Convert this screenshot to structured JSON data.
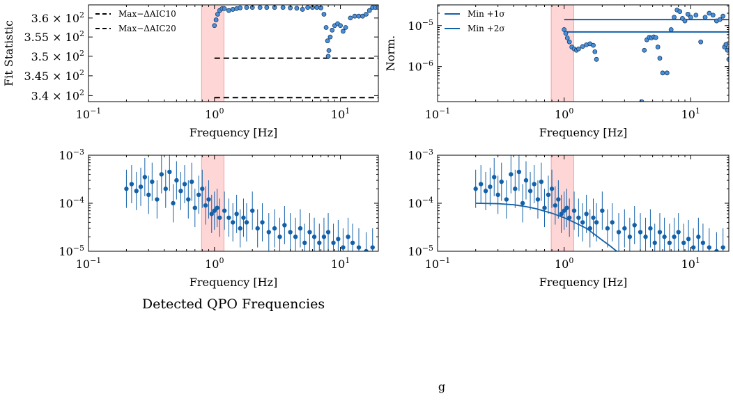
{
  "figure": {
    "section_title": "Detected QPO Frequencies",
    "stray_label": "g",
    "colors": {
      "series": "#1260a8",
      "marker_fill": "#4a90d9",
      "marker_edge": "#163a66",
      "band_fill": "#ffc8c8",
      "band_edge": "#f0a0a0",
      "threshold": "#000000"
    }
  },
  "chart_data": [
    {
      "id": "fit-statistic",
      "type": "scatter",
      "xlabel": "Frequency [Hz]",
      "ylabel": "Fit Statistic",
      "xscale": "log",
      "yscale": "log",
      "xlim": [
        0.1,
        20
      ],
      "ylim": [
        338.5,
        363.5
      ],
      "xtick_labels": [
        {
          "base": "10",
          "exp": "−1"
        },
        {
          "base": "10",
          "exp": "0"
        },
        {
          "base": "10",
          "exp": "1"
        }
      ],
      "ytick_labels": [
        {
          "value": 340,
          "mant": "3.4 × 10",
          "exp": "2"
        },
        {
          "value": 345,
          "mant": "3.45 × 10",
          "exp": "2"
        },
        {
          "value": 350,
          "mant": "3.5 × 10",
          "exp": "2"
        },
        {
          "value": 355,
          "mant": "3.55 × 10",
          "exp": "2"
        },
        {
          "value": 360,
          "mant": "3.6 × 10",
          "exp": "2"
        }
      ],
      "highlight_band": [
        0.79,
        1.19
      ],
      "legend_position": "top-left",
      "legend": [
        "Max−ΔAIC10",
        "Max−ΔAIC20"
      ],
      "thresholds": [
        {
          "name": "Max−ΔAIC10",
          "value": 349.5,
          "x_range": [
            1.0,
            20
          ],
          "style": "dashed"
        },
        {
          "name": "Max−ΔAIC20",
          "value": 339.5,
          "x_range": [
            1.0,
            20
          ],
          "style": "dashed"
        }
      ],
      "series": [
        {
          "name": "",
          "x": [
            1.0,
            1.03,
            1.06,
            1.1,
            1.15,
            1.2,
            1.3,
            1.4,
            1.5,
            1.6,
            1.8,
            2.0,
            2.3,
            2.6,
            3.0,
            3.5,
            4.0,
            4.5,
            5.0,
            5.5,
            6.0,
            6.5,
            7.0,
            7.4,
            7.7,
            7.9,
            8.0,
            8.1,
            8.3,
            8.6,
            9.0,
            9.5,
            10.0,
            10.5,
            11.0,
            12.0,
            13.0,
            14.0,
            15.0,
            16.0,
            17.0,
            18.0,
            19.0,
            20.0
          ],
          "y": [
            358.0,
            359.5,
            361.0,
            362.0,
            362.5,
            362.5,
            362.0,
            362.3,
            362.5,
            362.7,
            362.8,
            362.8,
            362.8,
            362.8,
            362.8,
            362.8,
            362.7,
            362.6,
            362.3,
            362.8,
            362.8,
            362.8,
            362.7,
            361.0,
            357.5,
            354.0,
            350.0,
            351.5,
            355.0,
            356.8,
            358.0,
            358.5,
            358.0,
            356.5,
            357.5,
            360.0,
            360.5,
            360.5,
            360.5,
            361.0,
            362.0,
            362.8,
            362.8,
            362.8
          ]
        }
      ]
    },
    {
      "id": "normalized",
      "type": "scatter",
      "xlabel": "Frequency [Hz]",
      "ylabel": "Norm.",
      "xscale": "log",
      "yscale": "log",
      "xlim": [
        0.1,
        20
      ],
      "ylim": [
        1.4e-07,
        3.2e-05
      ],
      "xtick_labels": [
        {
          "base": "10",
          "exp": "−1"
        },
        {
          "base": "10",
          "exp": "0"
        },
        {
          "base": "10",
          "exp": "1"
        }
      ],
      "ytick_labels": [
        {
          "value": 1e-06,
          "base": "10",
          "exp": "−6"
        },
        {
          "value": 1e-05,
          "base": "10",
          "exp": "−5"
        }
      ],
      "highlight_band": [
        0.79,
        1.19
      ],
      "legend_position": "top-left",
      "legend": [
        "Min +1σ",
        "Min +2σ"
      ],
      "thresholds": [
        {
          "name": "Min +1σ",
          "value": 1.4e-05,
          "x_range": [
            1.0,
            20
          ],
          "style": "solid"
        },
        {
          "name": "Min +2σ",
          "value": 7e-06,
          "x_range": [
            1.0,
            20
          ],
          "style": "solid"
        }
      ],
      "series": [
        {
          "name": "",
          "x": [
            1.0,
            1.03,
            1.06,
            1.1,
            1.15,
            1.2,
            1.25,
            1.3,
            1.4,
            1.5,
            1.6,
            1.7,
            1.75,
            1.8,
            4.1,
            4.3,
            4.5,
            4.7,
            4.9,
            5.1,
            5.3,
            5.5,
            5.7,
            6.0,
            6.5,
            7.0,
            7.4,
            7.8,
            8.2,
            8.6,
            9.0,
            9.5,
            10.0,
            11.0,
            12.0,
            13.0,
            14.0,
            15.0,
            16.0,
            17.0,
            18.0,
            18.5,
            19.0,
            19.5,
            20.0
          ],
          "y": [
            8e-06,
            6.5e-06,
            5e-06,
            4e-06,
            3e-06,
            2.7e-06,
            2.5e-06,
            2.7e-06,
            3.1e-06,
            3.4e-06,
            3.6e-06,
            3.3e-06,
            2.3e-06,
            1.5e-06,
            1.4e-07,
            2.5e-06,
            4.5e-06,
            5.2e-06,
            5e-06,
            5.3e-06,
            5.1e-06,
            3e-06,
            1.6e-06,
            7e-07,
            7e-07,
            8e-06,
            1.6e-05,
            2.4e-05,
            2.2e-05,
            1.5e-05,
            1.3e-05,
            1.9e-05,
            1.6e-05,
            1.8e-05,
            4e-06,
            1.6e-05,
            2e-05,
            1.8e-05,
            1.3e-05,
            1.4e-05,
            1.7e-05,
            3e-06,
            3.5e-06,
            2.5e-06,
            1.5e-06
          ]
        }
      ]
    },
    {
      "id": "power-spectrum",
      "type": "scatter",
      "xlabel": "Frequency [Hz]",
      "ylabel": "",
      "xscale": "log",
      "yscale": "log",
      "xlim": [
        0.1,
        20
      ],
      "ylim": [
        1e-05,
        0.001
      ],
      "xtick_labels": [
        {
          "base": "10",
          "exp": "−1"
        },
        {
          "base": "10",
          "exp": "0"
        },
        {
          "base": "10",
          "exp": "1"
        }
      ],
      "ytick_labels": [
        {
          "value": 1e-05,
          "base": "10",
          "exp": "−5"
        },
        {
          "value": 0.0001,
          "base": "10",
          "exp": "−4"
        },
        {
          "value": 0.001,
          "base": "10",
          "exp": "−3"
        }
      ],
      "highlight_band": [
        0.79,
        1.19
      ],
      "error_bars": true,
      "series": [
        {
          "name": "",
          "x": [
            0.2,
            0.22,
            0.24,
            0.26,
            0.28,
            0.3,
            0.32,
            0.35,
            0.38,
            0.41,
            0.44,
            0.47,
            0.5,
            0.54,
            0.58,
            0.62,
            0.66,
            0.7,
            0.75,
            0.8,
            0.85,
            0.9,
            0.95,
            1.0,
            1.05,
            1.1,
            1.2,
            1.3,
            1.4,
            1.5,
            1.6,
            1.7,
            1.8,
            2.0,
            2.2,
            2.4,
            2.7,
            3.0,
            3.3,
            3.6,
            4.0,
            4.4,
            4.8,
            5.2,
            5.7,
            6.2,
            6.8,
            7.4,
            8.0,
            8.8,
            9.6,
            10.5,
            11.5,
            12.5,
            14.0,
            16.0,
            18.0
          ],
          "y": [
            0.0002,
            0.00025,
            0.00018,
            0.00022,
            0.00035,
            0.00015,
            0.00028,
            0.00012,
            0.0004,
            0.0002,
            0.00045,
            0.0001,
            0.0003,
            0.00018,
            0.00025,
            0.00012,
            0.00028,
            8e-05,
            0.00015,
            0.0002,
            9e-05,
            0.00012,
            6e-05,
            7e-05,
            8e-05,
            5e-05,
            7e-05,
            5e-05,
            4e-05,
            6e-05,
            3e-05,
            5e-05,
            4e-05,
            7e-05,
            3e-05,
            4e-05,
            2.5e-05,
            3e-05,
            2e-05,
            3.5e-05,
            2.5e-05,
            2e-05,
            3e-05,
            1.5e-05,
            2.5e-05,
            2e-05,
            1.5e-05,
            2e-05,
            2.5e-05,
            1.5e-05,
            1.8e-05,
            1.2e-05,
            2e-05,
            1.5e-05,
            1.2e-05,
            1e-05,
            1.2e-05
          ],
          "y_err_factor": [
            2.5,
            2.5,
            2.5,
            2.5,
            2.5,
            2.5,
            2.5,
            2.5,
            2.5,
            2.5,
            2.5,
            2.5,
            2.5,
            2.5,
            2.5,
            2.5,
            2.5,
            2.5,
            2.5,
            2.5,
            2.5,
            2.5,
            2.5,
            2.5,
            2.5,
            2.5,
            2.5,
            2.5,
            2.5,
            2.5,
            2.5,
            2.5,
            2.5,
            2.5,
            2.5,
            2.5,
            2.5,
            2.5,
            2.5,
            2.5,
            2.5,
            2.5,
            2.5,
            2.5,
            2.5,
            2.5,
            2.5,
            2.5,
            2.5,
            2.5,
            2.5,
            2.5,
            2.5,
            2.5,
            2.5,
            2.5,
            2.5
          ]
        }
      ]
    },
    {
      "id": "power-spectrum-model",
      "type": "scatter",
      "xlabel": "Frequency [Hz]",
      "ylabel": "",
      "xscale": "log",
      "yscale": "log",
      "xlim": [
        0.1,
        20
      ],
      "ylim": [
        1e-05,
        0.001
      ],
      "xtick_labels": [
        {
          "base": "10",
          "exp": "−1"
        },
        {
          "base": "10",
          "exp": "0"
        },
        {
          "base": "10",
          "exp": "1"
        }
      ],
      "ytick_labels": [
        {
          "value": 1e-05,
          "base": "10",
          "exp": "−5"
        },
        {
          "value": 0.0001,
          "base": "10",
          "exp": "−4"
        },
        {
          "value": 0.001,
          "base": "10",
          "exp": "−3"
        }
      ],
      "highlight_band": [
        0.79,
        1.19
      ],
      "error_bars": true,
      "series": [
        {
          "name": "",
          "x": [
            0.2,
            0.22,
            0.24,
            0.26,
            0.28,
            0.3,
            0.32,
            0.35,
            0.38,
            0.41,
            0.44,
            0.47,
            0.5,
            0.54,
            0.58,
            0.62,
            0.66,
            0.7,
            0.75,
            0.8,
            0.85,
            0.9,
            0.95,
            1.0,
            1.05,
            1.1,
            1.2,
            1.3,
            1.4,
            1.5,
            1.6,
            1.7,
            1.8,
            2.0,
            2.2,
            2.4,
            2.7,
            3.0,
            3.3,
            3.6,
            4.0,
            4.4,
            4.8,
            5.2,
            5.7,
            6.2,
            6.8,
            7.4,
            8.0,
            8.8,
            9.6,
            10.5,
            11.5,
            12.5,
            14.0,
            16.0,
            18.0
          ],
          "y": [
            0.0002,
            0.00025,
            0.00018,
            0.00022,
            0.00035,
            0.00015,
            0.00028,
            0.00012,
            0.0004,
            0.0002,
            0.00045,
            0.0001,
            0.0003,
            0.00018,
            0.00025,
            0.00012,
            0.00028,
            8e-05,
            0.00015,
            0.0002,
            9e-05,
            0.00012,
            6e-05,
            7e-05,
            8e-05,
            5e-05,
            7e-05,
            5e-05,
            4e-05,
            6e-05,
            3e-05,
            5e-05,
            4e-05,
            7e-05,
            3e-05,
            4e-05,
            2.5e-05,
            3e-05,
            2e-05,
            3.5e-05,
            2.5e-05,
            2e-05,
            3e-05,
            1.5e-05,
            2.5e-05,
            2e-05,
            1.5e-05,
            2e-05,
            2.5e-05,
            1.5e-05,
            1.8e-05,
            1.2e-05,
            2e-05,
            1.5e-05,
            1.2e-05,
            1e-05,
            1.2e-05
          ],
          "y_err_factor": [
            2.5,
            2.5,
            2.5,
            2.5,
            2.5,
            2.5,
            2.5,
            2.5,
            2.5,
            2.5,
            2.5,
            2.5,
            2.5,
            2.5,
            2.5,
            2.5,
            2.5,
            2.5,
            2.5,
            2.5,
            2.5,
            2.5,
            2.5,
            2.5,
            2.5,
            2.5,
            2.5,
            2.5,
            2.5,
            2.5,
            2.5,
            2.5,
            2.5,
            2.5,
            2.5,
            2.5,
            2.5,
            2.5,
            2.5,
            2.5,
            2.5,
            2.5,
            2.5,
            2.5,
            2.5,
            2.5,
            2.5,
            2.5,
            2.5,
            2.5,
            2.5,
            2.5,
            2.5,
            2.5,
            2.5,
            2.5,
            2.5
          ]
        },
        {
          "name": "",
          "style": "line",
          "x": [
            0.2,
            0.3,
            0.4,
            0.5,
            0.6,
            0.8,
            1.0,
            1.2,
            1.5,
            1.8,
            2.0,
            2.3,
            2.6
          ],
          "y": [
            0.0001,
            9.8e-05,
            9.3e-05,
            8.5e-05,
            7.7e-05,
            6.2e-05,
            5e-05,
            4e-05,
            3e-05,
            2.1e-05,
            1.7e-05,
            1.3e-05,
            1e-05
          ]
        }
      ]
    }
  ]
}
